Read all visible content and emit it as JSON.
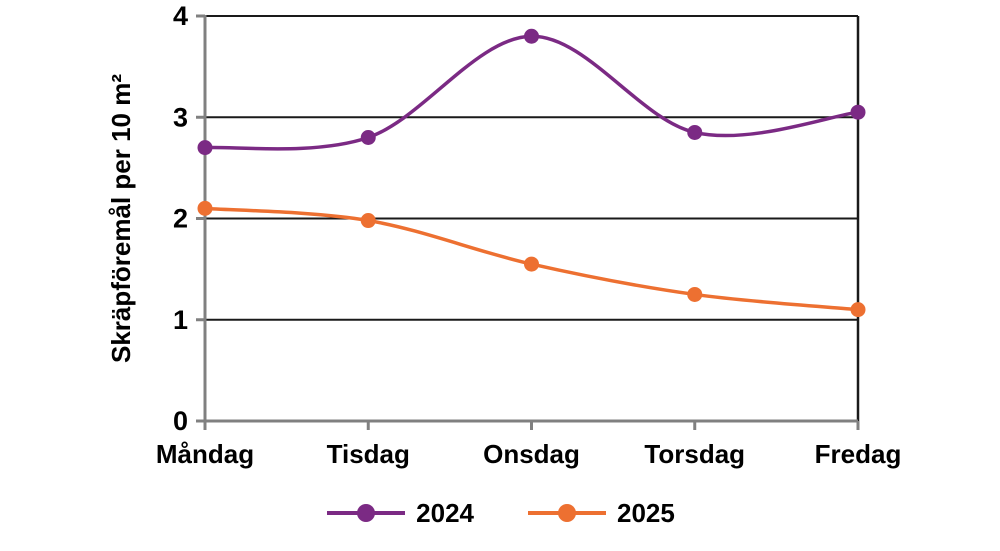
{
  "chart_data": {
    "type": "line",
    "title": "",
    "xlabel": "",
    "ylabel": "Skräpföremål per 10 m²",
    "categories": [
      "Måndag",
      "Tisdag",
      "Onsdag",
      "Torsdag",
      "Fredag"
    ],
    "series": [
      {
        "name": "2024",
        "color": "#7B2A84",
        "values": [
          2.7,
          2.8,
          3.8,
          2.85,
          3.05
        ]
      },
      {
        "name": "2025",
        "color": "#ED7031",
        "values": [
          2.1,
          1.98,
          1.55,
          1.25,
          1.1
        ]
      }
    ],
    "ylim": [
      0,
      4
    ],
    "yticks": [
      0,
      1,
      2,
      3,
      4
    ],
    "grid": "horizontal",
    "line_style": "smooth",
    "marker": "circle",
    "legend_position": "bottom",
    "colors": {
      "gridline": "#1a1a1a",
      "plot_border": "#1a1a1a",
      "axis": "#808080",
      "text": "#000000",
      "background": "#ffffff"
    }
  }
}
